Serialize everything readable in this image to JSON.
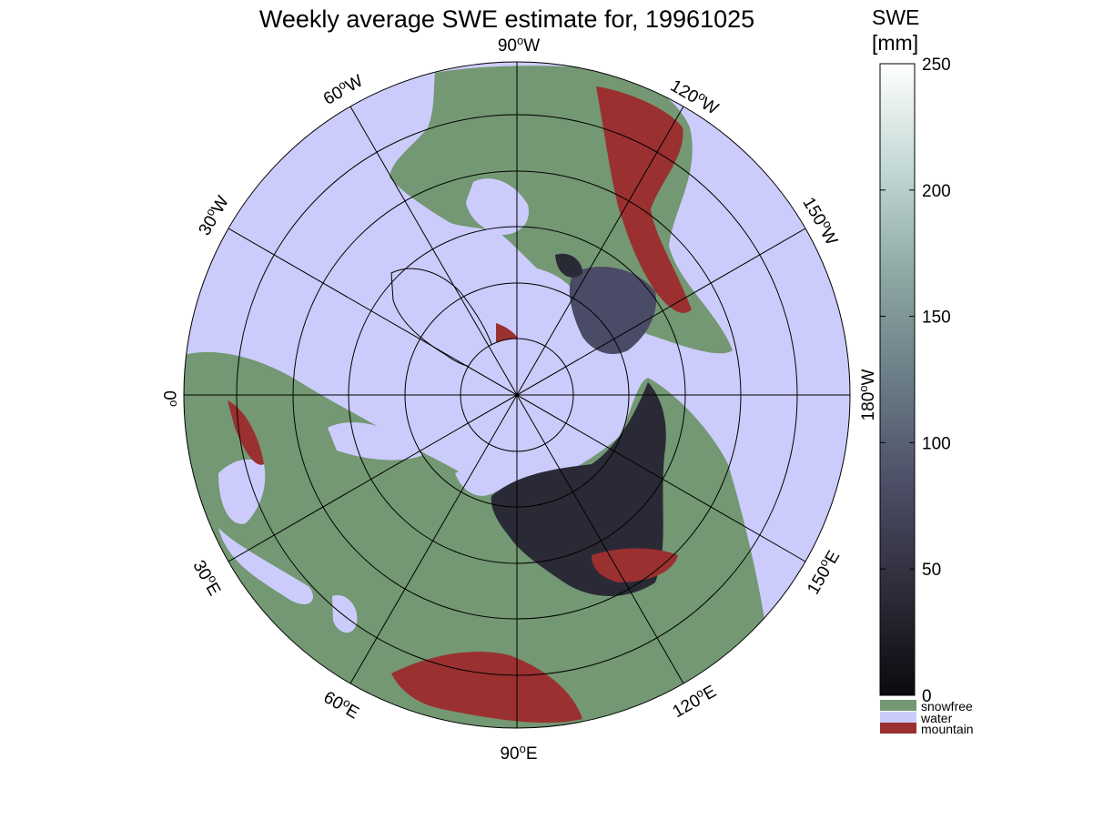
{
  "title": "Weekly average SWE estimate for, 19961025",
  "longitude_labels": [
    {
      "deg": "90",
      "sup": "o",
      "dir": "W"
    },
    {
      "deg": "120",
      "sup": "o",
      "dir": "W"
    },
    {
      "deg": "150",
      "sup": "o",
      "dir": "W"
    },
    {
      "deg": "180",
      "sup": "o",
      "dir": "W"
    },
    {
      "deg": "150",
      "sup": "o",
      "dir": "E"
    },
    {
      "deg": "120",
      "sup": "o",
      "dir": "E"
    },
    {
      "deg": "90",
      "sup": "o",
      "dir": "E"
    },
    {
      "deg": "60",
      "sup": "o",
      "dir": "E"
    },
    {
      "deg": "30",
      "sup": "o",
      "dir": "E"
    },
    {
      "deg": "0",
      "sup": "o",
      "dir": ""
    },
    {
      "deg": "30",
      "sup": "o",
      "dir": "W"
    },
    {
      "deg": "60",
      "sup": "o",
      "dir": "W"
    }
  ],
  "colorbar": {
    "title_line1": "SWE",
    "title_line2": "[mm]",
    "ticks": [
      "250",
      "200",
      "150",
      "100",
      "50",
      "0"
    ],
    "tick_values": [
      250,
      200,
      150,
      100,
      50,
      0
    ],
    "range": [
      0,
      250
    ],
    "colors": [
      "#0a0a0e",
      "#2e2c3a",
      "#4c4e66",
      "#6a7c86",
      "#8ea8a4",
      "#c2d8d4",
      "#ffffff"
    ]
  },
  "legend": [
    {
      "label": "snowfree",
      "color": "#739873"
    },
    {
      "label": "water",
      "color": "#ccccfc"
    },
    {
      "label": "mountain",
      "color": "#9b3030"
    }
  ],
  "palette": {
    "ocean": "#ccccfc",
    "land": "#739873",
    "mountain": "#9b3030",
    "snow_dark": "#2a2a36",
    "snow_mid": "#4a4b66"
  }
}
